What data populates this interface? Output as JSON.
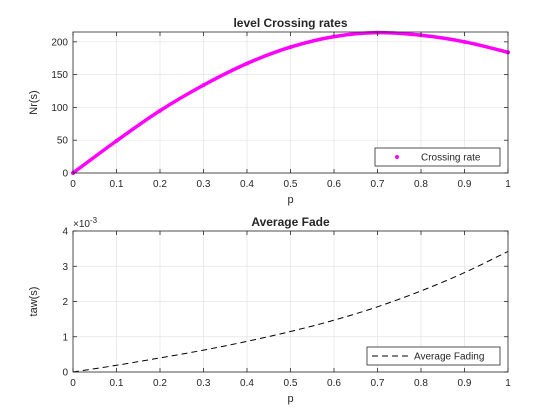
{
  "chart_data": [
    {
      "type": "line",
      "title": "level Crossing rates",
      "xlabel": "p",
      "ylabel": "Nr(s)",
      "xlim": [
        0,
        1
      ],
      "ylim": [
        0,
        215
      ],
      "x_ticks": [
        0,
        0.1,
        0.2,
        0.3,
        0.4,
        0.5,
        0.6,
        0.7,
        0.8,
        0.9,
        1
      ],
      "x_tick_labels": [
        "0",
        "0.1",
        "0.2",
        "0.3",
        "0.4",
        "0.5",
        "0.6",
        "0.7",
        "0.8",
        "0.9",
        "1"
      ],
      "y_ticks": [
        0,
        50,
        100,
        150,
        200
      ],
      "y_tick_labels": [
        "0",
        "50",
        "100",
        "150",
        "200"
      ],
      "grid": true,
      "legend": "bottom-right",
      "series": [
        {
          "name": "Crossing rate",
          "color": "#ff00ff",
          "marker": "dot",
          "x": [
            0,
            0.1,
            0.2,
            0.3,
            0.4,
            0.5,
            0.6,
            0.7,
            0.8,
            0.9,
            1.0
          ],
          "y": [
            0,
            49,
            95,
            134,
            167,
            192,
            208,
            214,
            210,
            200,
            184
          ]
        }
      ]
    },
    {
      "type": "line",
      "title": "Average Fade",
      "xlabel": "p",
      "ylabel": "taw(s)",
      "y_exponent_label": "×10",
      "y_exponent": "-3",
      "xlim": [
        0,
        1
      ],
      "ylim": [
        0,
        0.004
      ],
      "x_ticks": [
        0,
        0.1,
        0.2,
        0.3,
        0.4,
        0.5,
        0.6,
        0.7,
        0.8,
        0.9,
        1
      ],
      "x_tick_labels": [
        "0",
        "0.1",
        "0.2",
        "0.3",
        "0.4",
        "0.5",
        "0.6",
        "0.7",
        "0.8",
        "0.9",
        "1"
      ],
      "y_ticks": [
        0,
        0.001,
        0.002,
        0.003,
        0.004
      ],
      "y_tick_labels": [
        "0",
        "1",
        "2",
        "3",
        "4"
      ],
      "grid": true,
      "legend": "bottom-right",
      "series": [
        {
          "name": "Average Fading",
          "color": "#000000",
          "line_style": "dashed",
          "x": [
            0,
            0.1,
            0.2,
            0.3,
            0.4,
            0.5,
            0.6,
            0.7,
            0.8,
            0.9,
            1.0
          ],
          "y": [
            0,
            0.00019,
            0.0004,
            0.00062,
            0.00087,
            0.00115,
            0.00147,
            0.00185,
            0.0023,
            0.00282,
            0.00342
          ]
        }
      ]
    }
  ]
}
